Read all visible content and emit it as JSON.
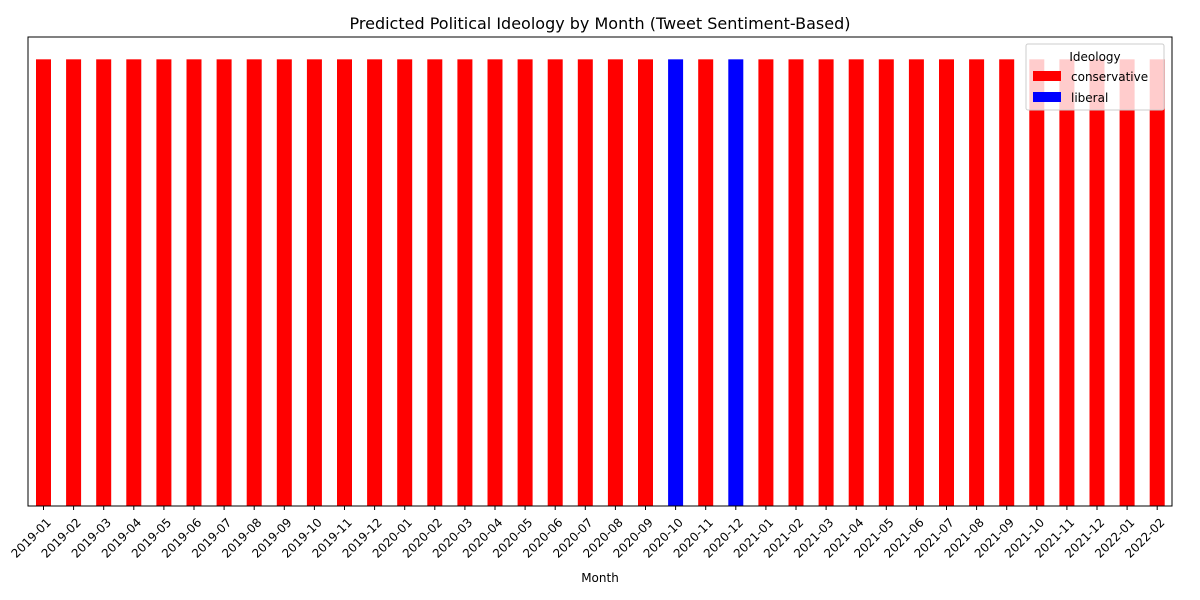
{
  "chart_data": {
    "type": "bar",
    "title": "Predicted Political Ideology by Month (Tweet Sentiment-Based)",
    "xlabel": "Month",
    "ylabel": "",
    "categories": [
      "2019-01",
      "2019-02",
      "2019-03",
      "2019-04",
      "2019-05",
      "2019-06",
      "2019-07",
      "2019-08",
      "2019-09",
      "2019-10",
      "2019-11",
      "2019-12",
      "2020-01",
      "2020-02",
      "2020-03",
      "2020-04",
      "2020-05",
      "2020-06",
      "2020-07",
      "2020-08",
      "2020-09",
      "2020-10",
      "2020-11",
      "2020-12",
      "2021-01",
      "2021-02",
      "2021-03",
      "2021-04",
      "2021-05",
      "2021-06",
      "2021-07",
      "2021-08",
      "2021-09",
      "2021-10",
      "2021-11",
      "2021-12",
      "2022-01",
      "2022-02"
    ],
    "ideology": [
      "conservative",
      "conservative",
      "conservative",
      "conservative",
      "conservative",
      "conservative",
      "conservative",
      "conservative",
      "conservative",
      "conservative",
      "conservative",
      "conservative",
      "conservative",
      "conservative",
      "conservative",
      "conservative",
      "conservative",
      "conservative",
      "conservative",
      "conservative",
      "conservative",
      "liberal",
      "conservative",
      "liberal",
      "conservative",
      "conservative",
      "conservative",
      "conservative",
      "conservative",
      "conservative",
      "conservative",
      "conservative",
      "conservative",
      "conservative",
      "conservative",
      "conservative",
      "conservative",
      "conservative"
    ],
    "series": [
      {
        "name": "conservative",
        "color": "#ff0000"
      },
      {
        "name": "liberal",
        "color": "#0000ff"
      }
    ],
    "values": [
      1,
      1,
      1,
      1,
      1,
      1,
      1,
      1,
      1,
      1,
      1,
      1,
      1,
      1,
      1,
      1,
      1,
      1,
      1,
      1,
      1,
      1,
      1,
      1,
      1,
      1,
      1,
      1,
      1,
      1,
      1,
      1,
      1,
      1,
      1,
      1,
      1,
      1
    ],
    "ylim": [
      0,
      1.05
    ],
    "y_ticks_shown": false,
    "grid": false,
    "legend": {
      "title": "Ideology",
      "placement": "top-right"
    }
  }
}
